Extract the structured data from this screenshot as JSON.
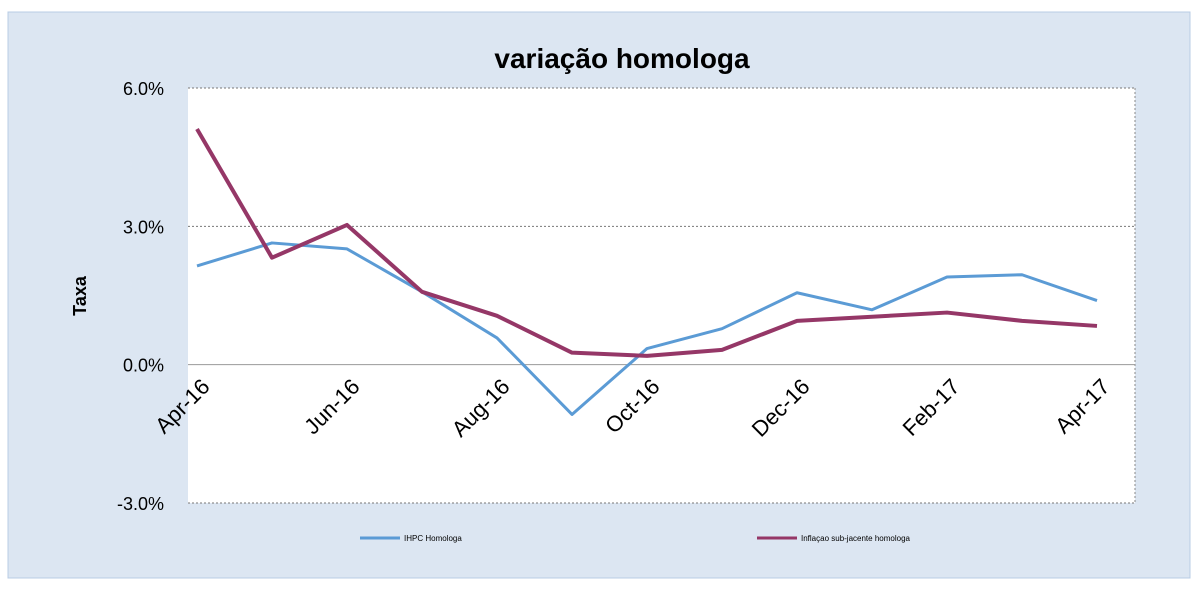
{
  "chart_data": {
    "type": "line",
    "title": "variação homologa",
    "y_label": "Taxa",
    "categories": [
      "Apr-16",
      null,
      "Jun-16",
      null,
      "Aug-16",
      null,
      "Oct-16",
      null,
      "Dec-16",
      null,
      "Feb-17",
      null,
      "Apr-17"
    ],
    "series": [
      {
        "name": "IHPC Homologa",
        "color": "#5b9bd5",
        "values": [
          2.14,
          2.64,
          2.51,
          1.58,
          0.58,
          -1.08,
          0.35,
          0.78,
          1.56,
          1.19,
          1.9,
          1.95,
          1.39
        ]
      },
      {
        "name": "Inflaçao sub-jacente homologa",
        "color": "#953767",
        "values": [
          5.11,
          2.32,
          3.03,
          1.58,
          1.06,
          0.26,
          0.19,
          0.32,
          0.95,
          1.04,
          1.13,
          0.95,
          0.84
        ]
      }
    ],
    "ylim": [
      -3,
      6
    ],
    "yticks": [
      {
        "value": -3,
        "label": "-3.0%"
      },
      {
        "value": 0,
        "label": "0.0%"
      },
      {
        "value": 3,
        "label": "3.0%"
      },
      {
        "value": 6,
        "label": "6.0%"
      }
    ],
    "grid": true,
    "legend": "bottom"
  }
}
